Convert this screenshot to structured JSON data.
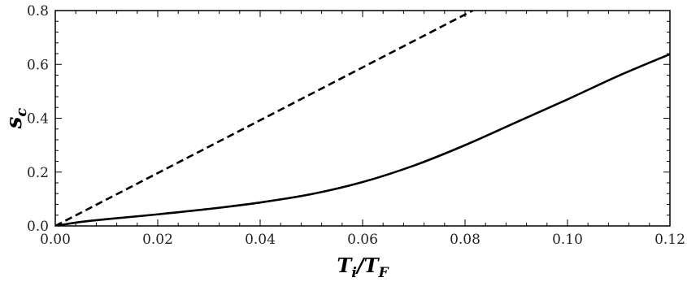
{
  "chart_data": {
    "type": "line",
    "xlabel_main": "T",
    "xlabel_num_sub": "i",
    "xlabel_sep": "/",
    "xlabel_den_main": "T",
    "xlabel_den_sub": "F",
    "ylabel_main": "s",
    "ylabel_sub": "c",
    "xlim": [
      0,
      0.12
    ],
    "ylim": [
      0,
      0.8
    ],
    "x_ticks": [
      "0.00",
      "0.02",
      "0.04",
      "0.06",
      "0.08",
      "0.10",
      "0.12"
    ],
    "y_ticks": [
      "0.0",
      "0.2",
      "0.4",
      "0.6",
      "0.8"
    ],
    "x_tick_values": [
      0,
      0.02,
      0.04,
      0.06,
      0.08,
      0.1,
      0.12
    ],
    "y_tick_values": [
      0,
      0.2,
      0.4,
      0.6,
      0.8
    ],
    "grid": false,
    "series": [
      {
        "style": "solid",
        "color": "#000000",
        "x": [
          0.0,
          0.005,
          0.01,
          0.02,
          0.03,
          0.04,
          0.05,
          0.06,
          0.07,
          0.08,
          0.09,
          0.1,
          0.11,
          0.12
        ],
        "y": [
          0.0,
          0.015,
          0.025,
          0.043,
          0.063,
          0.087,
          0.118,
          0.163,
          0.224,
          0.3,
          0.385,
          0.47,
          0.558,
          0.638
        ]
      },
      {
        "style": "dashed",
        "color": "#000000",
        "x": [
          0.0,
          0.0815
        ],
        "y": [
          0.0,
          0.8
        ]
      }
    ]
  }
}
